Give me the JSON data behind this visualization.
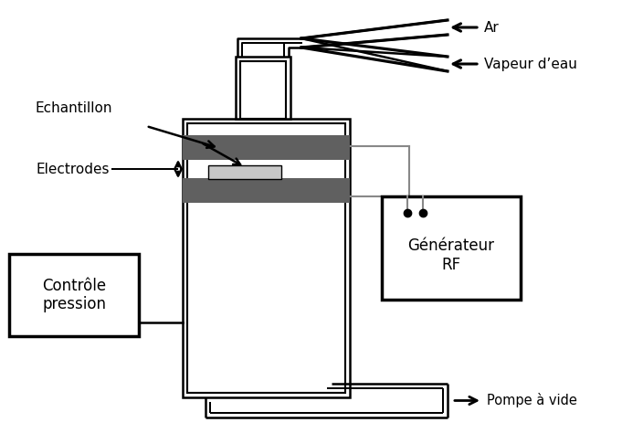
{
  "bg_color": "#ffffff",
  "lc": "#000000",
  "dark_gray": "#606060",
  "light_gray": "#c8c8c8",
  "wire_gray": "#888888",
  "labels": {
    "ar": "Ar",
    "vapeur": "Vapeur d’eau",
    "echantillon": "Echantillon",
    "electrodes": "Electrodes",
    "controle": "Contrôle\npression",
    "generateur": "Générateur\nRF",
    "pompe": "Pompe à vide"
  },
  "figsize": [
    6.81,
    4.74
  ],
  "dpi": 100
}
